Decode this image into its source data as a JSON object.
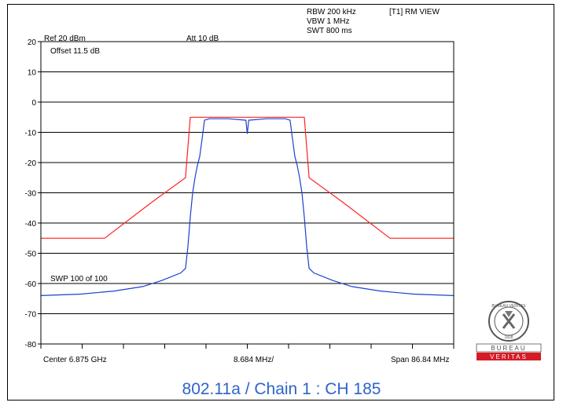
{
  "header": {
    "rbw": "RBW 200 kHz",
    "vbw": "VBW 1 MHz",
    "swt": "SWT 800 ms",
    "trace": "[T1] RM VIEW",
    "ref": "Ref 20 dBm",
    "att": "Att  10 dB",
    "offset": "Offset 11.5 dB",
    "sweep": "SWP 100 of 100"
  },
  "footer": {
    "center": "Center 6.875 GHz",
    "div": "8.684 MHz/",
    "span": "Span 86.84 MHz",
    "caption": "802.11a / Chain 1 : CH 185"
  },
  "logo": {
    "top_text": "BUREAU VERITAS",
    "year": "1828",
    "bottom_top": "BUREAU",
    "bottom_bottom": "VERITAS"
  },
  "chart_data": {
    "type": "line",
    "x_unit": "MHz offset from center",
    "xlim": [
      -43.42,
      43.42
    ],
    "ylim": [
      -80,
      20
    ],
    "yticks": [
      20,
      10,
      0,
      -10,
      -20,
      -30,
      -40,
      -50,
      -60,
      -70,
      -80
    ],
    "grid": true,
    "series": [
      {
        "color": "#ff2020",
        "points": [
          [
            -43.42,
            -45
          ],
          [
            -30,
            -45
          ],
          [
            -20,
            -33
          ],
          [
            -13,
            -25
          ],
          [
            -12,
            -5
          ],
          [
            12,
            -5
          ],
          [
            13,
            -25
          ],
          [
            20,
            -33
          ],
          [
            30,
            -45
          ],
          [
            43.42,
            -45
          ]
        ]
      },
      {
        "color": "#1f3fd0",
        "points": [
          [
            -43.42,
            -64
          ],
          [
            -35,
            -63.5
          ],
          [
            -28,
            -62.5
          ],
          [
            -22,
            -61
          ],
          [
            -18,
            -59
          ],
          [
            -14,
            -56.5
          ],
          [
            -13,
            -55
          ],
          [
            -12.5,
            -48
          ],
          [
            -12,
            -38
          ],
          [
            -11.5,
            -30
          ],
          [
            -11,
            -25
          ],
          [
            -10.5,
            -21
          ],
          [
            -10,
            -18
          ],
          [
            -9.5,
            -12
          ],
          [
            -9,
            -6
          ],
          [
            -8,
            -5.5
          ],
          [
            -4,
            -5.5
          ],
          [
            -0.3,
            -6
          ],
          [
            0,
            -10.5
          ],
          [
            0.3,
            -6
          ],
          [
            4,
            -5.5
          ],
          [
            8,
            -5.5
          ],
          [
            9,
            -6
          ],
          [
            9.5,
            -12
          ],
          [
            10,
            -18
          ],
          [
            10.5,
            -21
          ],
          [
            11,
            -25
          ],
          [
            11.5,
            -30
          ],
          [
            12,
            -38
          ],
          [
            12.5,
            -48
          ],
          [
            13,
            -55
          ],
          [
            14,
            -56.5
          ],
          [
            18,
            -59
          ],
          [
            22,
            -61
          ],
          [
            28,
            -62.5
          ],
          [
            35,
            -63.5
          ],
          [
            43.42,
            -64
          ]
        ]
      }
    ]
  }
}
